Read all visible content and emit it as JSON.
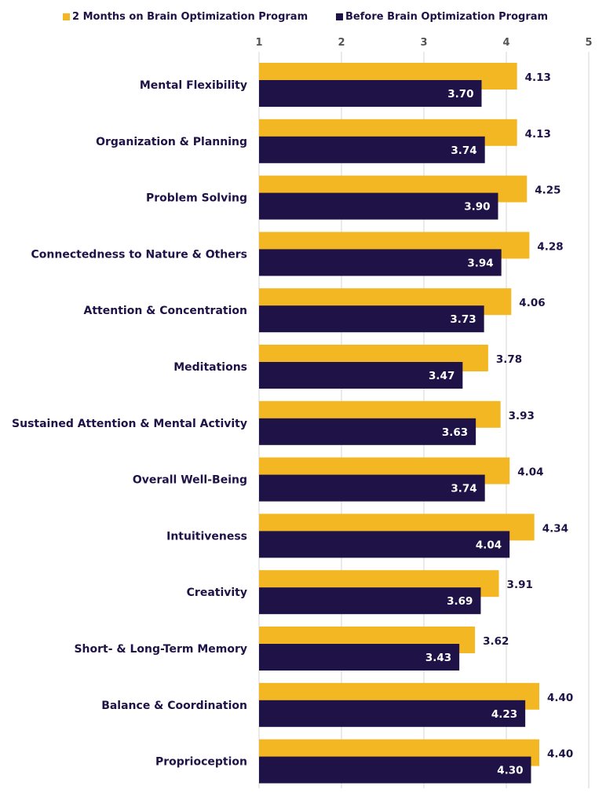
{
  "colors": {
    "after": "#f2b722",
    "before": "#1f1247",
    "grid": "#d6d6d6",
    "text": "#1f1247"
  },
  "chart_data": {
    "type": "bar",
    "orientation": "horizontal",
    "title": "",
    "xlabel": "",
    "ylabel": "",
    "xlim": [
      1,
      5
    ],
    "xticks": [
      "1",
      "2",
      "3",
      "4",
      "5"
    ],
    "grid": true,
    "legend_position": "top",
    "categories": [
      "Mental Flexibility",
      "Organization & Planning",
      "Problem Solving",
      "Connectedness to Nature & Others",
      "Attention & Concentration",
      "Meditations",
      "Sustained Attention & Mental Activity",
      "Overall Well-Being",
      "Intuitiveness",
      "Creativity",
      "Short- & Long-Term Memory",
      "Balance & Coordination",
      "Proprioception"
    ],
    "series": [
      {
        "name": "2 Months on Brain Optimization Program",
        "values": [
          4.13,
          4.13,
          4.25,
          4.28,
          4.06,
          3.78,
          3.93,
          4.04,
          4.34,
          3.91,
          3.62,
          4.4,
          4.4
        ],
        "labels": [
          "4.13",
          "4.13",
          "4.25",
          "4.28",
          "4.06",
          "3.78",
          "3.93",
          "4.04",
          "4.34",
          "3.91",
          "3.62",
          "4.40",
          "4.40"
        ]
      },
      {
        "name": "Before Brain Optimization Program",
        "values": [
          3.7,
          3.74,
          3.9,
          3.94,
          3.73,
          3.47,
          3.63,
          3.74,
          4.04,
          3.69,
          3.43,
          4.23,
          4.3
        ],
        "labels": [
          "3.70",
          "3.74",
          "3.90",
          "3.94",
          "3.73",
          "3.47",
          "3.63",
          "3.74",
          "4.04",
          "3.69",
          "3.43",
          "4.23",
          "4.30"
        ]
      }
    ]
  }
}
